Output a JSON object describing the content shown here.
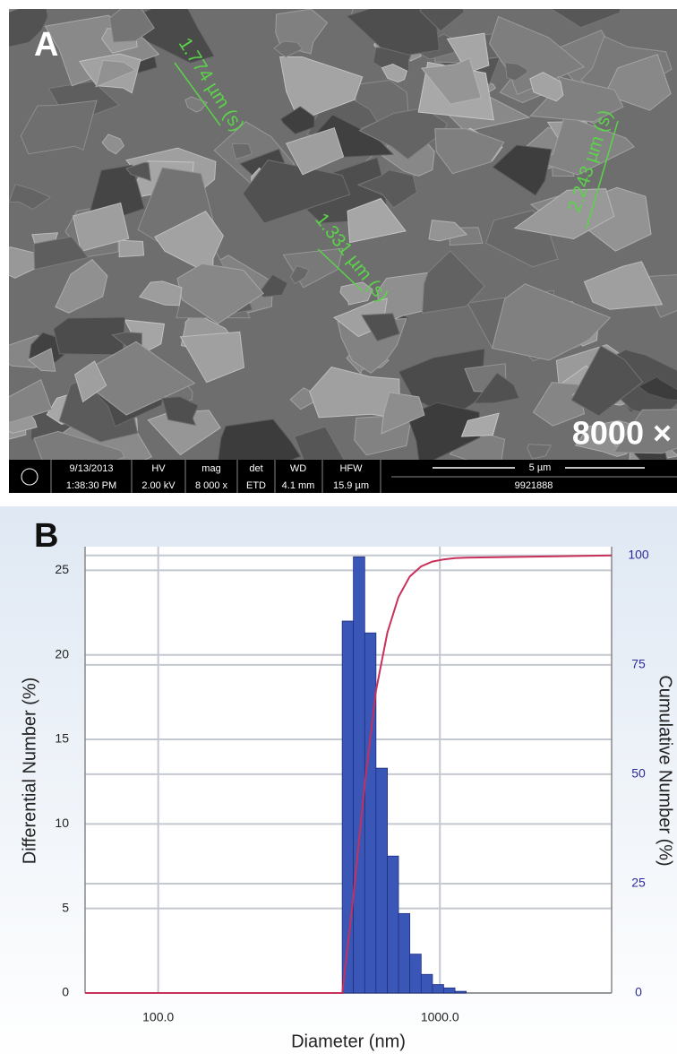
{
  "panel_a": {
    "label": "A",
    "magnification": "8000 ×",
    "measurements": [
      "1.774 µm (s)",
      "1.331 µm (s)",
      "2.243 µm (s)"
    ],
    "info_bar": {
      "date": "9/13/2013",
      "time": "1:38:30 PM",
      "hv_label": "HV",
      "hv": "2.00 kV",
      "mag_label": "mag",
      "mag": "8 000 x",
      "det_label": "det",
      "det": "ETD",
      "wd_label": "WD",
      "wd": "4.1 mm",
      "hfw_label": "HFW",
      "hfw": "15.9 µm",
      "scale": "5 µm",
      "id": "9921888"
    }
  },
  "chart_data": {
    "type": "histogram",
    "label": "B",
    "x_label": "Diameter (nm)",
    "y_label": "Differential Number (%)",
    "y2_label": "Cumulative Number (%)",
    "log_x": true,
    "grid": true,
    "bins": [
      450,
      493,
      541,
      593,
      651,
      713,
      782,
      858,
      941,
      1031,
      1131,
      1240
    ],
    "values": [
      22,
      25.8,
      21.3,
      13.3,
      8.1,
      4.7,
      2.3,
      1.1,
      0.5,
      0.3,
      0.1
    ],
    "color": "#3a57b8",
    "cumulative": {
      "color": "#c8305a",
      "axis": "y2",
      "x": [
        55,
        420,
        450,
        493,
        541,
        593,
        651,
        713,
        782,
        858,
        941,
        1031,
        1131,
        1240,
        4070
      ],
      "values": [
        0,
        0,
        0,
        22,
        47.8,
        69.1,
        82.4,
        90.5,
        95.2,
        97.5,
        98.6,
        99.1,
        99.4,
        99.5,
        100
      ]
    },
    "xlim": [
      55,
      4070
    ],
    "xticks": [
      {
        "value": 100,
        "label": "100.0"
      },
      {
        "value": 1000,
        "label": "1000.0"
      }
    ],
    "ylim": [
      0,
      26.4
    ],
    "yticks": [
      0,
      5,
      10,
      15,
      20,
      25
    ],
    "y2lim": [
      0,
      102
    ],
    "y2ticks": [
      0,
      25,
      50,
      75,
      100
    ],
    "y2_color": "#2d2d9a"
  }
}
